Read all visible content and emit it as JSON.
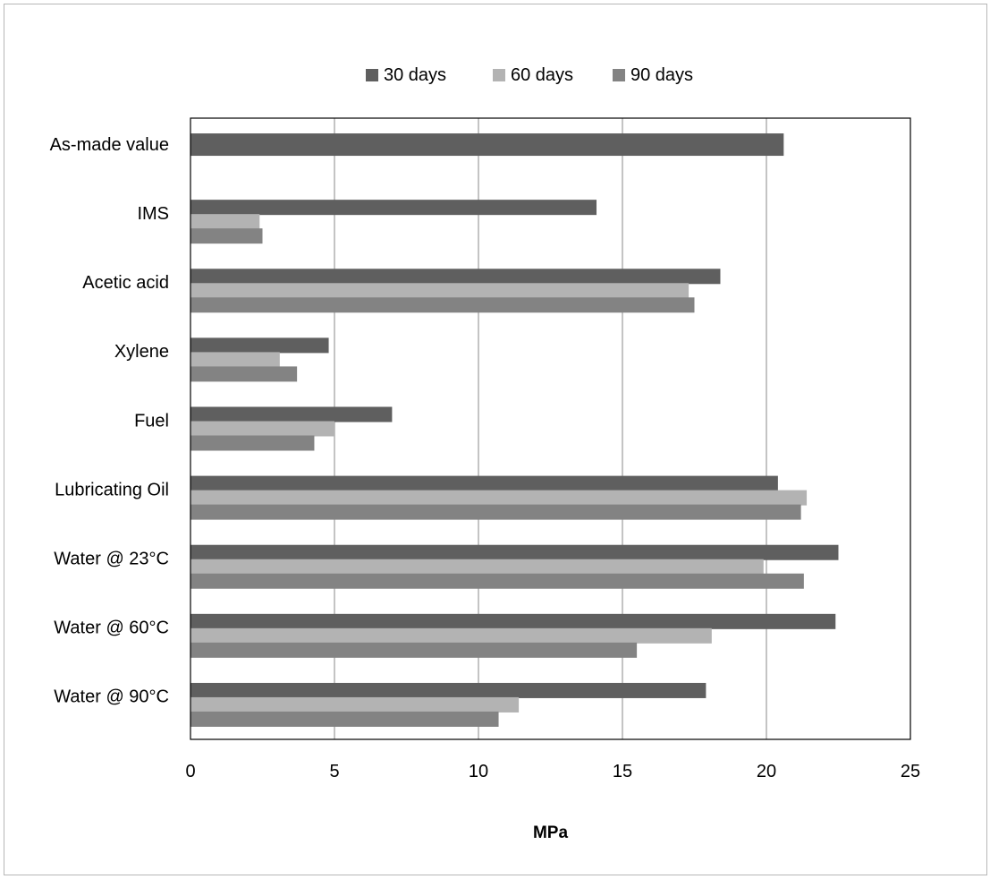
{
  "chart_data": {
    "type": "bar",
    "orientation": "horizontal",
    "categories": [
      "As-made value",
      "IMS",
      "Acetic acid",
      "Xylene",
      "Fuel",
      "Lubricating Oil",
      "Water @ 23°C",
      "Water @ 60°C",
      "Water @ 90°C"
    ],
    "series": [
      {
        "name": "30 days",
        "color": "#5f5f5f",
        "values": [
          20.6,
          14.1,
          18.4,
          4.8,
          7.0,
          20.4,
          22.5,
          22.4,
          17.9
        ]
      },
      {
        "name": "60 days",
        "color": "#b3b3b3",
        "values": [
          null,
          2.4,
          17.3,
          3.1,
          5.0,
          21.4,
          19.9,
          18.1,
          11.4
        ]
      },
      {
        "name": "90 days",
        "color": "#838383",
        "values": [
          null,
          2.5,
          17.5,
          3.7,
          4.3,
          21.2,
          21.3,
          15.5,
          10.7
        ]
      }
    ],
    "xlabel": "MPa",
    "xlim": [
      0,
      25
    ],
    "xticks": [
      0,
      5,
      10,
      15,
      20,
      25
    ],
    "grid": "vertical major gridlines",
    "legend_position": "top"
  }
}
